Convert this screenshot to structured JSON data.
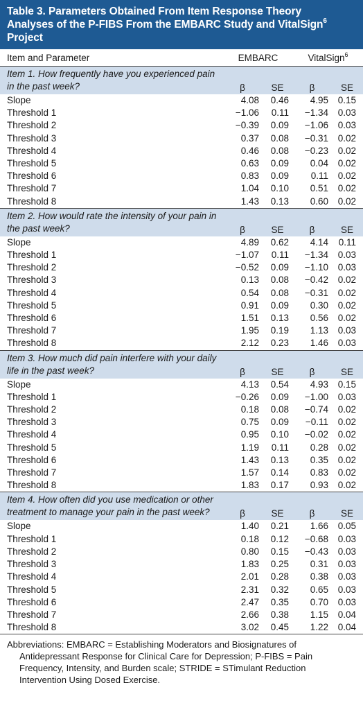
{
  "title_lines": [
    "Table 3. Parameters Obtained From Item Response Theory",
    "Analyses of the P-FIBS From the EMBARC Study and VitalSign",
    "Project"
  ],
  "title_sup": "6",
  "header": {
    "col0": "Item and Parameter",
    "col_embarc": "EMBARC",
    "col_vital": "VitalSign",
    "col_vital_sup": "6"
  },
  "subhead": {
    "beta": "β",
    "se": "SE"
  },
  "items": [
    {
      "question": "Item 1. How frequently have you experienced pain in the past week?",
      "rows": [
        {
          "label": "Slope",
          "e_b": "4.08",
          "e_se": "0.46",
          "v_b": "4.95",
          "v_se": "0.15"
        },
        {
          "label": "Threshold 1",
          "e_b": "−1.06",
          "e_se": "0.11",
          "v_b": "−1.34",
          "v_se": "0.03"
        },
        {
          "label": "Threshold 2",
          "e_b": "−0.39",
          "e_se": "0.09",
          "v_b": "−1.06",
          "v_se": "0.03"
        },
        {
          "label": "Threshold 3",
          "e_b": "0.37",
          "e_se": "0.08",
          "v_b": "−0.31",
          "v_se": "0.02"
        },
        {
          "label": "Threshold 4",
          "e_b": "0.46",
          "e_se": "0.08",
          "v_b": "−0.23",
          "v_se": "0.02"
        },
        {
          "label": "Threshold 5",
          "e_b": "0.63",
          "e_se": "0.09",
          "v_b": "0.04",
          "v_se": "0.02"
        },
        {
          "label": "Threshold 6",
          "e_b": "0.83",
          "e_se": "0.09",
          "v_b": "0.11",
          "v_se": "0.02"
        },
        {
          "label": "Threshold 7",
          "e_b": "1.04",
          "e_se": "0.10",
          "v_b": "0.51",
          "v_se": "0.02"
        },
        {
          "label": "Threshold 8",
          "e_b": "1.43",
          "e_se": "0.13",
          "v_b": "0.60",
          "v_se": "0.02"
        }
      ]
    },
    {
      "question": "Item 2. How would rate the intensity of your pain in the past week?",
      "rows": [
        {
          "label": "Slope",
          "e_b": "4.89",
          "e_se": "0.62",
          "v_b": "4.14",
          "v_se": "0.11"
        },
        {
          "label": "Threshold 1",
          "e_b": "−1.07",
          "e_se": "0.11",
          "v_b": "−1.34",
          "v_se": "0.03"
        },
        {
          "label": "Threshold 2",
          "e_b": "−0.52",
          "e_se": "0.09",
          "v_b": "−1.10",
          "v_se": "0.03"
        },
        {
          "label": "Threshold 3",
          "e_b": "0.13",
          "e_se": "0.08",
          "v_b": "−0.42",
          "v_se": "0.02"
        },
        {
          "label": "Threshold 4",
          "e_b": "0.54",
          "e_se": "0.08",
          "v_b": "−0.31",
          "v_se": "0.02"
        },
        {
          "label": "Threshold 5",
          "e_b": "0.91",
          "e_se": "0.09",
          "v_b": "0.30",
          "v_se": "0.02"
        },
        {
          "label": "Threshold 6",
          "e_b": "1.51",
          "e_se": "0.13",
          "v_b": "0.56",
          "v_se": "0.02"
        },
        {
          "label": "Threshold 7",
          "e_b": "1.95",
          "e_se": "0.19",
          "v_b": "1.13",
          "v_se": "0.03"
        },
        {
          "label": "Threshold 8",
          "e_b": "2.12",
          "e_se": "0.23",
          "v_b": "1.46",
          "v_se": "0.03"
        }
      ]
    },
    {
      "question": "Item 3. How much did pain interfere with your daily life in the past week?",
      "rows": [
        {
          "label": "Slope",
          "e_b": "4.13",
          "e_se": "0.54",
          "v_b": "4.93",
          "v_se": "0.15"
        },
        {
          "label": "Threshold 1",
          "e_b": "−0.26",
          "e_se": "0.09",
          "v_b": "−1.00",
          "v_se": "0.03"
        },
        {
          "label": "Threshold 2",
          "e_b": "0.18",
          "e_se": "0.08",
          "v_b": "−0.74",
          "v_se": "0.02"
        },
        {
          "label": "Threshold 3",
          "e_b": "0.75",
          "e_se": "0.09",
          "v_b": "−0.11",
          "v_se": "0.02"
        },
        {
          "label": "Threshold 4",
          "e_b": "0.95",
          "e_se": "0.10",
          "v_b": "−0.02",
          "v_se": "0.02"
        },
        {
          "label": "Threshold 5",
          "e_b": "1.19",
          "e_se": "0.11",
          "v_b": "0.28",
          "v_se": "0.02"
        },
        {
          "label": "Threshold 6",
          "e_b": "1.43",
          "e_se": "0.13",
          "v_b": "0.35",
          "v_se": "0.02"
        },
        {
          "label": "Threshold 7",
          "e_b": "1.57",
          "e_se": "0.14",
          "v_b": "0.83",
          "v_se": "0.02"
        },
        {
          "label": "Threshold 8",
          "e_b": "1.83",
          "e_se": "0.17",
          "v_b": "0.93",
          "v_se": "0.02"
        }
      ]
    },
    {
      "question": "Item 4. How often did you use medication or other treatment to manage your pain in the past week?",
      "rows": [
        {
          "label": "Slope",
          "e_b": "1.40",
          "e_se": "0.21",
          "v_b": "1.66",
          "v_se": "0.05"
        },
        {
          "label": "Threshold 1",
          "e_b": "0.18",
          "e_se": "0.12",
          "v_b": "−0.68",
          "v_se": "0.03"
        },
        {
          "label": "Threshold 2",
          "e_b": "0.80",
          "e_se": "0.15",
          "v_b": "−0.43",
          "v_se": "0.03"
        },
        {
          "label": "Threshold 3",
          "e_b": "1.83",
          "e_se": "0.25",
          "v_b": "0.31",
          "v_se": "0.03"
        },
        {
          "label": "Threshold 4",
          "e_b": "2.01",
          "e_se": "0.28",
          "v_b": "0.38",
          "v_se": "0.03"
        },
        {
          "label": "Threshold 5",
          "e_b": "2.31",
          "e_se": "0.32",
          "v_b": "0.65",
          "v_se": "0.03"
        },
        {
          "label": "Threshold 6",
          "e_b": "2.47",
          "e_se": "0.35",
          "v_b": "0.70",
          "v_se": "0.03"
        },
        {
          "label": "Threshold 7",
          "e_b": "2.66",
          "e_se": "0.38",
          "v_b": "1.15",
          "v_se": "0.04"
        },
        {
          "label": "Threshold 8",
          "e_b": "3.02",
          "e_se": "0.45",
          "v_b": "1.22",
          "v_se": "0.04"
        }
      ]
    }
  ],
  "footnote_lines": [
    "Abbreviations: EMBARC = Establishing Moderators and Biosignatures of",
    "Antidepressant Response for Clinical Care for Depression; P-FIBS = Pain",
    "Frequency, Intensity, and Burden scale; STRIDE = STimulant Reduction",
    "Intervention Using Dosed Exercise."
  ],
  "colors": {
    "title_bg": "#1e5a93",
    "item_band_bg": "#cfdceb"
  }
}
